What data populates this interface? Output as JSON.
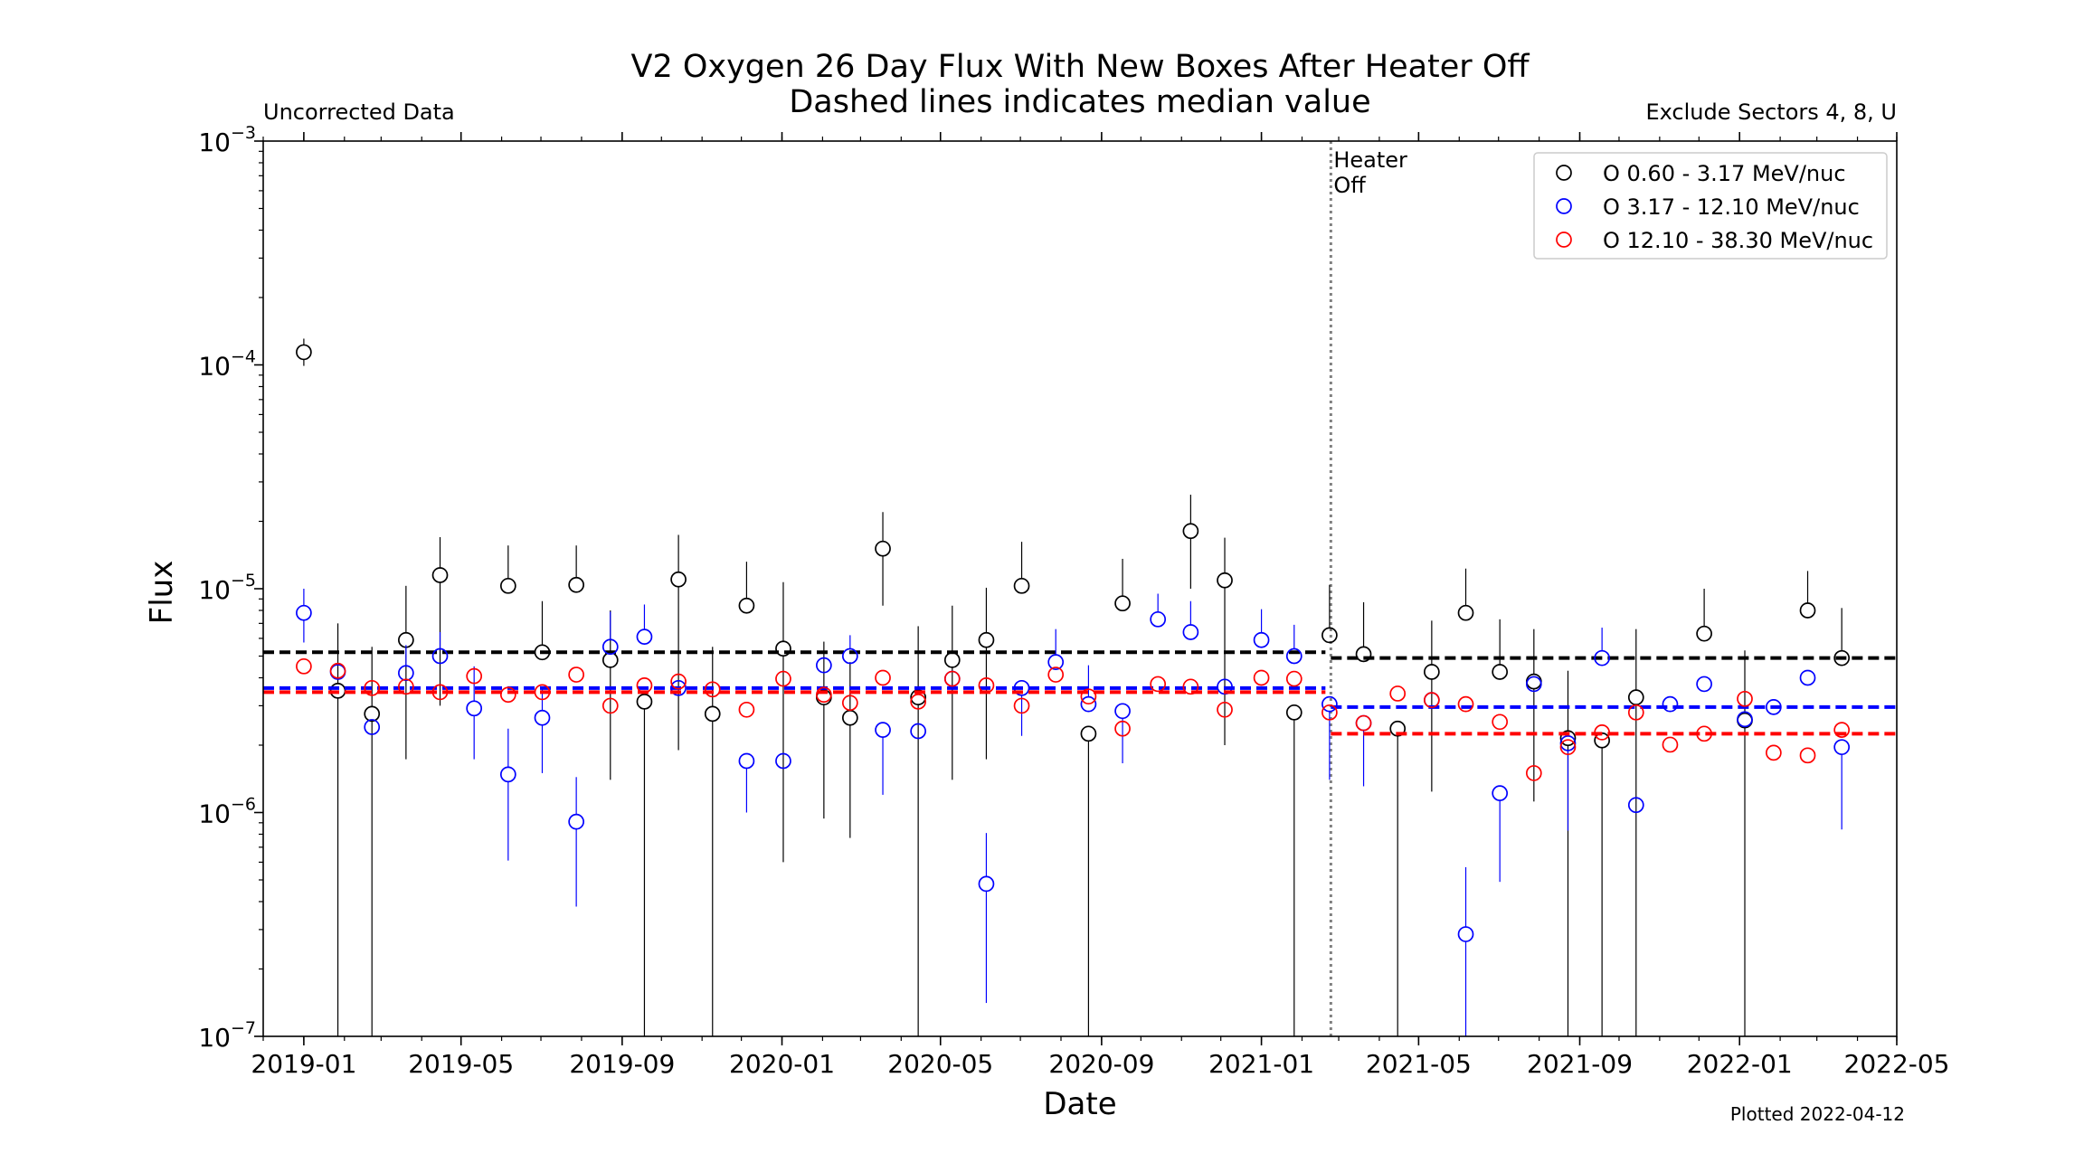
{
  "chart_data": {
    "type": "scatter",
    "title": "V2 Oxygen 26 Day Flux With New Boxes After Heater Off",
    "subtitle": "Dashed lines indicates median value",
    "left_note": "Uncorrected Data",
    "right_note": "Exclude Sectors 4, 8, U",
    "right_note_color": "#ff0000",
    "footer": "Plotted 2022-04-12",
    "xlabel": "Date",
    "ylabel": "Flux",
    "yscale": "log",
    "ylim": [
      1e-07,
      0.001
    ],
    "xlim": [
      "2018-12-01",
      "2022-05-01"
    ],
    "grid": false,
    "legend_placement": "top-right",
    "x_ticks": [
      "2019-01",
      "2019-05",
      "2019-09",
      "2020-01",
      "2020-05",
      "2020-09",
      "2021-01",
      "2021-05",
      "2021-09",
      "2022-01",
      "2022-05"
    ],
    "y_ticks": [
      {
        "value": 0.001,
        "base": "10",
        "exp": "−3"
      },
      {
        "value": 0.0001,
        "base": "10",
        "exp": "−4"
      },
      {
        "value": 1e-05,
        "base": "10",
        "exp": "−5"
      },
      {
        "value": 1e-06,
        "base": "10",
        "exp": "−6"
      },
      {
        "value": 1e-07,
        "base": "10",
        "exp": "−7"
      }
    ],
    "heater_off": {
      "date": "2021-02-23",
      "label_lines": [
        "Heater",
        "Off"
      ],
      "color": "#808080"
    },
    "series": [
      {
        "name": "O 0.60 - 3.17 MeV/nuc",
        "color": "#000000",
        "median_before": 5.2e-06,
        "median_after": 4.9e-06,
        "points": [
          [
            "2019-01-01",
            0.000114,
            9.9e-05,
            0.000131
          ],
          [
            "2019-01-27",
            3.5e-06,
            0,
            7e-06
          ],
          [
            "2019-02-22",
            2.76e-06,
            0,
            5.5e-06
          ],
          [
            "2019-03-20",
            5.9e-06,
            1.73e-06,
            1.03e-05
          ],
          [
            "2019-04-15",
            1.15e-05,
            3e-06,
            1.7e-05
          ],
          [
            "2019-06-06",
            1.03e-05,
            null,
            1.56e-05
          ],
          [
            "2019-07-02",
            5.2e-06,
            null,
            8.8e-06
          ],
          [
            "2019-07-28",
            1.04e-05,
            null,
            1.56e-05
          ],
          [
            "2019-08-23",
            4.8e-06,
            1.4e-06,
            8e-06
          ],
          [
            "2019-09-18",
            3.13e-06,
            0,
            null
          ],
          [
            "2019-10-14",
            1.1e-05,
            1.9e-06,
            1.74e-05
          ],
          [
            "2019-11-09",
            2.76e-06,
            0,
            5.5e-06
          ],
          [
            "2019-12-05",
            8.4e-06,
            null,
            1.32e-05
          ],
          [
            "2020-01-02",
            5.4e-06,
            6e-07,
            1.07e-05
          ],
          [
            "2020-02-02",
            3.27e-06,
            9.4e-07,
            5.8e-06
          ],
          [
            "2020-02-22",
            2.65e-06,
            7.7e-07,
            4.7e-06
          ],
          [
            "2020-03-18",
            1.51e-05,
            8.4e-06,
            2.2e-05
          ],
          [
            "2020-04-14",
            3.27e-06,
            0,
            6.8e-06
          ],
          [
            "2020-05-10",
            4.8e-06,
            1.4e-06,
            8.4e-06
          ],
          [
            "2020-06-05",
            5.9e-06,
            1.73e-06,
            1.01e-05
          ],
          [
            "2020-07-02",
            1.03e-05,
            null,
            1.62e-05
          ],
          [
            "2020-08-22",
            2.25e-06,
            0,
            null
          ],
          [
            "2020-09-17",
            8.6e-06,
            null,
            1.36e-05
          ],
          [
            "2020-11-08",
            1.81e-05,
            1e-05,
            2.63e-05
          ],
          [
            "2020-12-04",
            1.09e-05,
            2e-06,
            1.69e-05
          ],
          [
            "2021-01-26",
            2.8e-06,
            0,
            null
          ],
          [
            "2021-02-22",
            6.2e-06,
            null,
            1.04e-05
          ],
          [
            "2021-03-20",
            5.1e-06,
            null,
            8.7e-06
          ],
          [
            "2021-04-15",
            2.37e-06,
            0,
            null
          ],
          [
            "2021-05-11",
            4.25e-06,
            1.24e-06,
            7.2e-06
          ],
          [
            "2021-06-06",
            7.8e-06,
            null,
            1.23e-05
          ],
          [
            "2021-07-02",
            4.25e-06,
            null,
            7.3e-06
          ],
          [
            "2021-07-28",
            3.85e-06,
            1.12e-06,
            6.6e-06
          ],
          [
            "2021-08-23",
            2.15e-06,
            0,
            4.3e-06
          ],
          [
            "2021-09-18",
            2.1e-06,
            0,
            null
          ],
          [
            "2021-10-14",
            3.27e-06,
            0,
            6.6e-06
          ],
          [
            "2021-12-05",
            6.3e-06,
            null,
            1e-05
          ],
          [
            "2022-01-05",
            2.58e-06,
            0,
            5.3e-06
          ],
          [
            "2022-02-22",
            8e-06,
            null,
            1.2e-05
          ],
          [
            "2022-03-20",
            4.9e-06,
            null,
            8.2e-06
          ]
        ]
      },
      {
        "name": "O 3.17 - 12.10 MeV/nuc",
        "color": "#0000ff",
        "median_before": 3.6e-06,
        "median_after": 2.96e-06,
        "points": [
          [
            "2019-01-01",
            7.8e-06,
            5.75e-06,
            1e-05
          ],
          [
            "2019-01-27",
            4.25e-06,
            null,
            null
          ],
          [
            "2019-02-22",
            2.41e-06,
            null,
            null
          ],
          [
            "2019-03-20",
            4.2e-06,
            null,
            5.6e-06
          ],
          [
            "2019-04-15",
            5e-06,
            null,
            6.4e-06
          ],
          [
            "2019-05-11",
            2.92e-06,
            1.73e-06,
            4.5e-06
          ],
          [
            "2019-06-06",
            1.48e-06,
            6.1e-07,
            2.37e-06
          ],
          [
            "2019-07-02",
            2.65e-06,
            1.5e-06,
            3.6e-06
          ],
          [
            "2019-07-28",
            9.1e-07,
            3.8e-07,
            1.44e-06
          ],
          [
            "2019-08-23",
            5.5e-06,
            null,
            7.9e-06
          ],
          [
            "2019-09-18",
            6.1e-06,
            null,
            8.5e-06
          ],
          [
            "2019-10-14",
            3.6e-06,
            null,
            null
          ],
          [
            "2019-12-05",
            1.7e-06,
            1e-06,
            null
          ],
          [
            "2020-01-02",
            1.7e-06,
            null,
            null
          ],
          [
            "2020-02-02",
            4.55e-06,
            null,
            null
          ],
          [
            "2020-02-22",
            5e-06,
            null,
            6.2e-06
          ],
          [
            "2020-03-18",
            2.34e-06,
            1.2e-06,
            null
          ],
          [
            "2020-04-14",
            2.31e-06,
            null,
            null
          ],
          [
            "2020-05-10",
            3.96e-06,
            null,
            null
          ],
          [
            "2020-06-05",
            4.8e-07,
            1.41e-07,
            8.1e-07
          ],
          [
            "2020-07-02",
            3.6e-06,
            2.2e-06,
            null
          ],
          [
            "2020-07-28",
            4.7e-06,
            null,
            6.6e-06
          ],
          [
            "2020-08-22",
            3.05e-06,
            null,
            4.55e-06
          ],
          [
            "2020-09-17",
            2.84e-06,
            1.66e-06,
            null
          ],
          [
            "2020-10-14",
            7.3e-06,
            null,
            9.5e-06
          ],
          [
            "2020-11-08",
            6.4e-06,
            null,
            8.8e-06
          ],
          [
            "2020-12-04",
            3.65e-06,
            null,
            null
          ],
          [
            "2021-01-01",
            5.9e-06,
            null,
            8.1e-06
          ],
          [
            "2021-01-26",
            5e-06,
            null,
            6.9e-06
          ],
          [
            "2021-02-22",
            3.05e-06,
            1.4e-06,
            null
          ],
          [
            "2021-03-20",
            2.51e-06,
            1.31e-06,
            null
          ],
          [
            "2021-05-11",
            3.18e-06,
            null,
            null
          ],
          [
            "2021-06-06",
            2.86e-07,
            0,
            5.7e-07
          ],
          [
            "2021-07-02",
            1.22e-06,
            4.9e-07,
            null
          ],
          [
            "2021-07-28",
            3.75e-06,
            null,
            null
          ],
          [
            "2021-08-23",
            2.04e-06,
            8.3e-07,
            null
          ],
          [
            "2021-09-18",
            4.9e-06,
            null,
            6.7e-06
          ],
          [
            "2021-10-14",
            1.08e-06,
            null,
            null
          ],
          [
            "2021-11-09",
            3.05e-06,
            null,
            null
          ],
          [
            "2021-12-05",
            3.75e-06,
            null,
            null
          ],
          [
            "2022-01-05",
            2.61e-06,
            null,
            null
          ],
          [
            "2022-01-27",
            2.96e-06,
            null,
            null
          ],
          [
            "2022-02-22",
            4e-06,
            null,
            null
          ],
          [
            "2022-03-20",
            1.96e-06,
            8.4e-07,
            null
          ]
        ]
      },
      {
        "name": "O 12.10 - 38.30 MeV/nuc",
        "color": "#ff0000",
        "median_before": 3.45e-06,
        "median_after": 2.25e-06,
        "points": [
          [
            "2019-01-01",
            4.5e-06
          ],
          [
            "2019-01-27",
            4.3e-06
          ],
          [
            "2019-02-22",
            3.6e-06
          ],
          [
            "2019-03-20",
            3.65e-06
          ],
          [
            "2019-04-15",
            3.45e-06
          ],
          [
            "2019-05-11",
            4.07e-06
          ],
          [
            "2019-06-06",
            3.36e-06
          ],
          [
            "2019-07-02",
            3.45e-06
          ],
          [
            "2019-07-28",
            4.13e-06
          ],
          [
            "2019-08-23",
            3e-06
          ],
          [
            "2019-09-18",
            3.7e-06
          ],
          [
            "2019-10-14",
            3.85e-06
          ],
          [
            "2019-11-09",
            3.55e-06
          ],
          [
            "2019-12-05",
            2.88e-06
          ],
          [
            "2020-01-02",
            3.96e-06
          ],
          [
            "2020-02-02",
            3.36e-06
          ],
          [
            "2020-02-22",
            3.09e-06
          ],
          [
            "2020-03-18",
            4e-06
          ],
          [
            "2020-04-14",
            3.13e-06
          ],
          [
            "2020-05-10",
            3.96e-06
          ],
          [
            "2020-06-05",
            3.7e-06
          ],
          [
            "2020-07-02",
            3e-06
          ],
          [
            "2020-07-28",
            4.13e-06
          ],
          [
            "2020-08-22",
            3.3e-06
          ],
          [
            "2020-09-17",
            2.37e-06
          ],
          [
            "2020-10-14",
            3.75e-06
          ],
          [
            "2020-11-08",
            3.65e-06
          ],
          [
            "2020-12-04",
            2.88e-06
          ],
          [
            "2021-01-01",
            4e-06
          ],
          [
            "2021-01-26",
            3.96e-06
          ],
          [
            "2021-02-22",
            2.8e-06
          ],
          [
            "2021-03-20",
            2.51e-06
          ],
          [
            "2021-04-15",
            3.4e-06
          ],
          [
            "2021-05-11",
            3.18e-06
          ],
          [
            "2021-06-06",
            3.05e-06
          ],
          [
            "2021-07-02",
            2.54e-06
          ],
          [
            "2021-07-28",
            1.5e-06
          ],
          [
            "2021-08-23",
            1.96e-06
          ],
          [
            "2021-09-18",
            2.28e-06
          ],
          [
            "2021-10-14",
            2.8e-06
          ],
          [
            "2021-11-09",
            2.01e-06
          ],
          [
            "2021-12-05",
            2.25e-06
          ],
          [
            "2022-01-05",
            3.22e-06
          ],
          [
            "2022-01-27",
            1.85e-06
          ],
          [
            "2022-02-22",
            1.8e-06
          ],
          [
            "2022-03-20",
            2.34e-06
          ]
        ]
      }
    ]
  }
}
